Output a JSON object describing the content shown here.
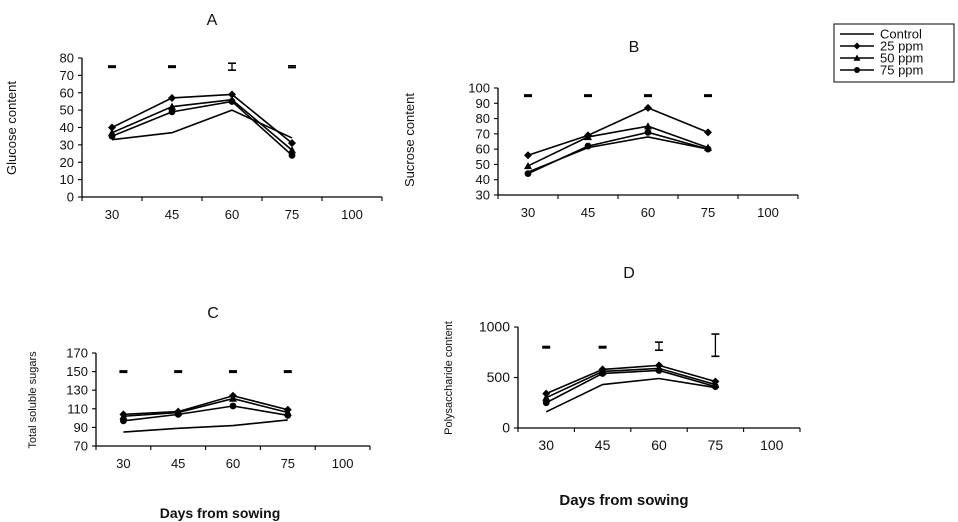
{
  "shared": {
    "x_categories": [
      "30",
      "45",
      "60",
      "75",
      "100"
    ],
    "xlabel": "Days from sowing",
    "legend": {
      "placement": "top-right",
      "entries": [
        {
          "label": "Control",
          "marker": "none"
        },
        {
          "label": "25 ppm",
          "marker": "diamond"
        },
        {
          "label": "50 ppm",
          "marker": "triangle"
        },
        {
          "label": "75 ppm",
          "marker": "circle"
        }
      ]
    }
  },
  "chart_data": [
    {
      "type": "line",
      "title": "A",
      "ylabel": "Glucose content",
      "xlabel": "",
      "categories": [
        "30",
        "45",
        "60",
        "75",
        "100"
      ],
      "ylim": [
        0,
        80
      ],
      "yticks": [
        "0",
        "10",
        "20",
        "30",
        "40",
        "50",
        "60",
        "70",
        "80"
      ],
      "series": [
        {
          "name": "Control",
          "marker": "none",
          "values": [
            33,
            37,
            50,
            34,
            null
          ]
        },
        {
          "name": "25 ppm",
          "marker": "diamond",
          "values": [
            40,
            57,
            59,
            31,
            null
          ]
        },
        {
          "name": "50 ppm",
          "marker": "triangle",
          "values": [
            37,
            52,
            56,
            27,
            null
          ]
        },
        {
          "name": "75 ppm",
          "marker": "circle",
          "values": [
            35,
            49,
            55,
            24,
            null
          ]
        }
      ],
      "error_bars": [
        {
          "category": "30",
          "y": 75,
          "half": 0
        },
        {
          "category": "45",
          "y": 75,
          "half": 0
        },
        {
          "category": "60",
          "y": 75,
          "half": 2
        },
        {
          "category": "75",
          "y": 75,
          "half": 0.5
        }
      ]
    },
    {
      "type": "line",
      "title": "B",
      "ylabel": "Sucrose content",
      "xlabel": "",
      "categories": [
        "30",
        "45",
        "60",
        "75",
        "100"
      ],
      "ylim": [
        30,
        100
      ],
      "yticks": [
        "30",
        "40",
        "50",
        "60",
        "70",
        "80",
        "90",
        "100"
      ],
      "series": [
        {
          "name": "Control",
          "marker": "none",
          "values": [
            45,
            61,
            68,
            60,
            null
          ]
        },
        {
          "name": "25 ppm",
          "marker": "diamond",
          "values": [
            56,
            69,
            87,
            71,
            null
          ]
        },
        {
          "name": "50 ppm",
          "marker": "triangle",
          "values": [
            49,
            68,
            75,
            61,
            null
          ]
        },
        {
          "name": "75 ppm",
          "marker": "circle",
          "values": [
            44,
            62,
            71,
            60,
            null
          ]
        }
      ],
      "error_bars": [
        {
          "category": "30",
          "y": 95,
          "half": 0
        },
        {
          "category": "45",
          "y": 95,
          "half": 0
        },
        {
          "category": "60",
          "y": 95,
          "half": 0
        },
        {
          "category": "75",
          "y": 95,
          "half": 0
        }
      ]
    },
    {
      "type": "line",
      "title": "C",
      "ylabel": "Total soluble sugars",
      "xlabel": "Days from sowing",
      "categories": [
        "30",
        "45",
        "60",
        "75",
        "100"
      ],
      "ylim": [
        70,
        170
      ],
      "yticks": [
        "70",
        "90",
        "110",
        "130",
        "150",
        "170"
      ],
      "series": [
        {
          "name": "Control",
          "marker": "none",
          "values": [
            85,
            89,
            92,
            98,
            null
          ]
        },
        {
          "name": "25 ppm",
          "marker": "diamond",
          "values": [
            104,
            107,
            124,
            109,
            null
          ]
        },
        {
          "name": "50 ppm",
          "marker": "triangle",
          "values": [
            102,
            106,
            121,
            106,
            null
          ]
        },
        {
          "name": "75 ppm",
          "marker": "circle",
          "values": [
            97,
            104,
            113,
            103,
            null
          ]
        }
      ],
      "error_bars": [
        {
          "category": "30",
          "y": 150,
          "half": 0
        },
        {
          "category": "45",
          "y": 150,
          "half": 0
        },
        {
          "category": "60",
          "y": 150,
          "half": 0
        },
        {
          "category": "75",
          "y": 150,
          "half": 0
        }
      ]
    },
    {
      "type": "line",
      "title": "D",
      "ylabel": "Polysaccharide content",
      "xlabel": "Days from sowing",
      "categories": [
        "30",
        "45",
        "60",
        "75",
        "100"
      ],
      "ylim": [
        0,
        1000
      ],
      "yticks": [
        "0",
        "500",
        "1000"
      ],
      "series": [
        {
          "name": "Control",
          "marker": "none",
          "values": [
            160,
            430,
            490,
            400,
            null
          ]
        },
        {
          "name": "25 ppm",
          "marker": "diamond",
          "values": [
            340,
            580,
            620,
            460,
            null
          ]
        },
        {
          "name": "50 ppm",
          "marker": "triangle",
          "values": [
            300,
            560,
            590,
            430,
            null
          ]
        },
        {
          "name": "75 ppm",
          "marker": "circle",
          "values": [
            250,
            540,
            570,
            410,
            null
          ]
        }
      ],
      "error_bars": [
        {
          "category": "30",
          "y": 800,
          "half": 0
        },
        {
          "category": "45",
          "y": 800,
          "half": 0
        },
        {
          "category": "60",
          "y": 810,
          "half": 40
        },
        {
          "category": "75",
          "y": 820,
          "half": 110
        }
      ]
    }
  ]
}
